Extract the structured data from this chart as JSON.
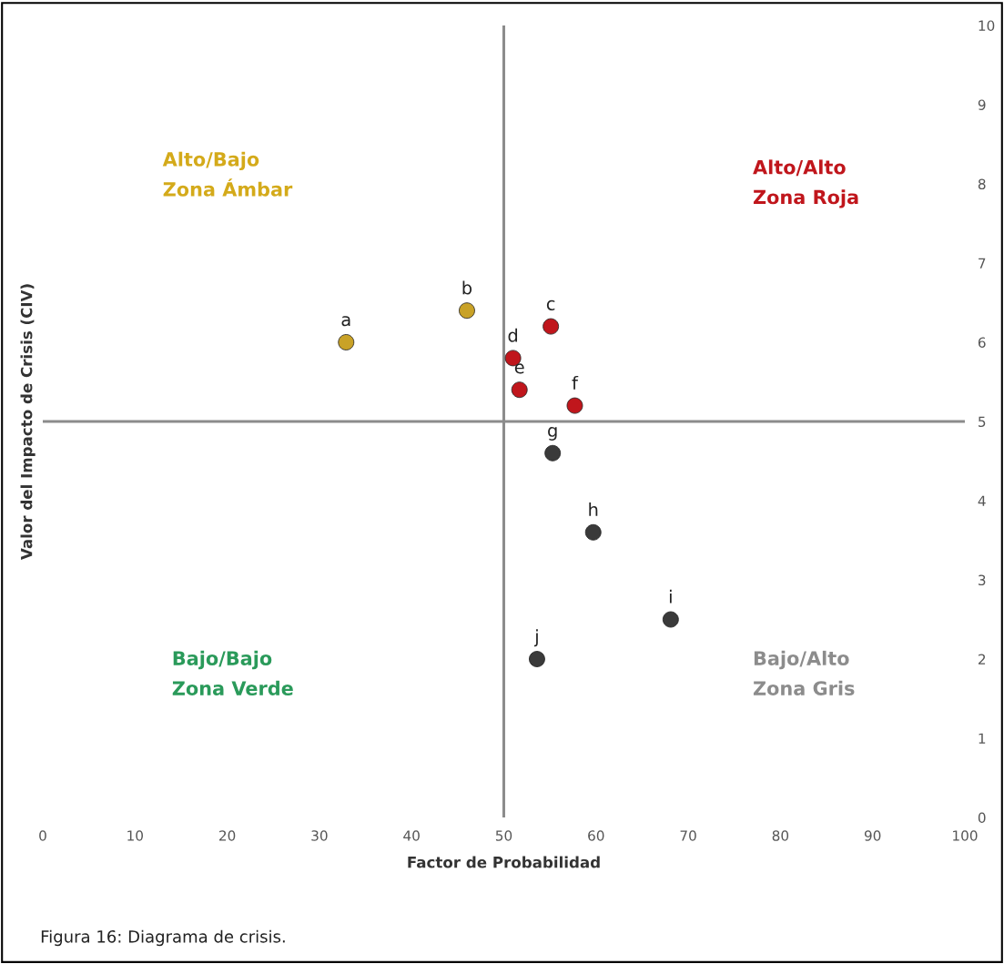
{
  "chart_data": {
    "type": "scatter",
    "xlabel": "Factor de Probabilidad",
    "ylabel": "Valor del Impacto de Crisis (CIV)",
    "x": [
      32.9,
      46.0,
      55.1,
      51.0,
      51.7,
      57.7,
      55.3,
      59.7,
      68.1,
      53.6
    ],
    "values": [
      6.0,
      6.4,
      6.2,
      5.8,
      5.4,
      5.2,
      4.6,
      3.6,
      2.5,
      2.0
    ],
    "colors": [
      "#c9a227",
      "#c9a227",
      "#c0161c",
      "#c0161c",
      "#c0161c",
      "#c0161c",
      "#3a3a3a",
      "#3a3a3a",
      "#3a3a3a",
      "#3a3a3a"
    ],
    "marker": "circle",
    "xlim": [
      0,
      100
    ],
    "xticks": [
      0,
      10,
      20,
      30,
      40,
      50,
      60,
      70,
      80,
      90,
      100
    ],
    "ylim": [
      0,
      10
    ],
    "yticks": [
      0,
      1,
      2,
      3,
      4,
      5,
      6,
      7,
      8,
      9,
      10
    ],
    "grid": false,
    "legend": false,
    "ref_lines": [
      {
        "axis": "x",
        "value": 50,
        "color": "#8c8c8c"
      },
      {
        "axis": "y",
        "value": 5,
        "color": "#8c8c8c"
      }
    ],
    "annotations": [
      {
        "text": "a",
        "x": 32.9,
        "y": 6.0
      },
      {
        "text": "b",
        "x": 46.0,
        "y": 6.4
      },
      {
        "text": "c",
        "x": 55.1,
        "y": 6.2
      },
      {
        "text": "d",
        "x": 51.0,
        "y": 5.8
      },
      {
        "text": "e",
        "x": 51.7,
        "y": 5.4
      },
      {
        "text": "f",
        "x": 57.7,
        "y": 5.2
      },
      {
        "text": "g",
        "x": 55.3,
        "y": 4.6
      },
      {
        "text": "h",
        "x": 59.7,
        "y": 3.6
      },
      {
        "text": "i",
        "x": 68.1,
        "y": 2.5
      },
      {
        "text": "j",
        "x": 53.6,
        "y": 2.0
      },
      "Alto/Bajo\nZona Ámbar",
      "Alto/Alto\nZona Roja",
      "Bajo/Bajo\nZona Verde",
      "Bajo/Alto\nZona Gris",
      "Figura 16: Diagrama de crisis."
    ]
  }
}
